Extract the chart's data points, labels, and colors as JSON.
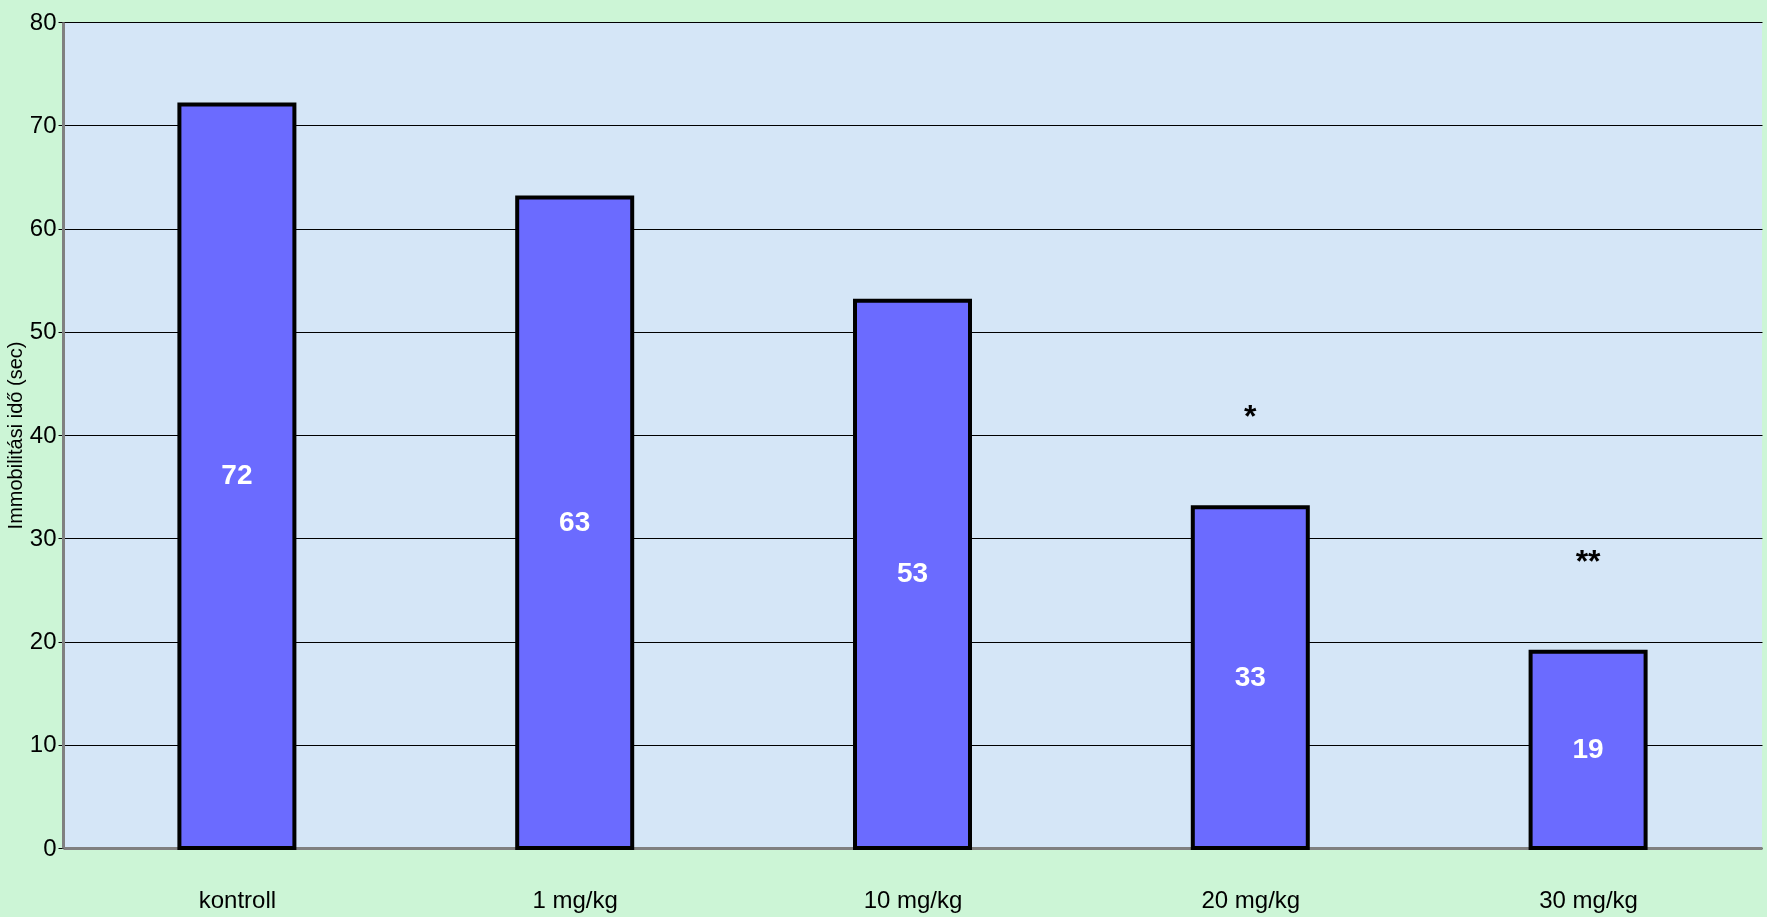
{
  "chart_data": {
    "type": "bar",
    "ylabel": "Immobilitási idő (sec)",
    "categories": [
      "kontroll",
      "1 mg/kg",
      "10 mg/kg",
      "20 mg/kg",
      "30 mg/kg"
    ],
    "values": [
      72,
      63,
      53,
      33,
      19
    ],
    "color": "#6b6bff",
    "ylim": [
      0,
      80
    ],
    "yticks": [
      0,
      10,
      20,
      30,
      40,
      50,
      60,
      70,
      80
    ],
    "grid": "y",
    "data_labels": true,
    "annotations": [
      "*",
      "**"
    ]
  }
}
